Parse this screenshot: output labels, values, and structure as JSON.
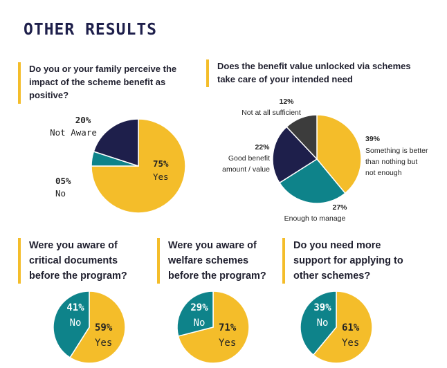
{
  "title": "OTHER RESULTS",
  "colors": {
    "yellow": "#f4bd2a",
    "navy": "#1e1f4b",
    "teal": "#0e838a",
    "dark": "#3c3c3c"
  },
  "chart_data": [
    {
      "type": "pie",
      "question": "Do you or your family perceive the impact of the scheme benefit as positive?",
      "slices": [
        {
          "label": "Yes",
          "value": 75,
          "pct": "75%"
        },
        {
          "label": "No",
          "value": 5,
          "pct": "05%"
        },
        {
          "label": "Not Aware",
          "value": 20,
          "pct": "20%"
        }
      ]
    },
    {
      "type": "pie",
      "question": "Does the benefit value unlocked via schemes take care of your intended need",
      "slices": [
        {
          "label": "Something is better than nothing but not enough",
          "label_lines": [
            "Something is better",
            "than nothing but",
            "not enough"
          ],
          "value": 39,
          "pct": "39%"
        },
        {
          "label": "Enough to manage",
          "label_lines": [
            "Enough to manage"
          ],
          "value": 27,
          "pct": "27%"
        },
        {
          "label": "Good benefit amount / value",
          "label_lines": [
            "Good benefit",
            "amount / value"
          ],
          "value": 22,
          "pct": "22%"
        },
        {
          "label": "Not at all sufficient",
          "label_lines": [
            "Not at all sufficient"
          ],
          "value": 12,
          "pct": "12%"
        }
      ]
    },
    {
      "type": "pie",
      "question": "Were you aware of critical documents before the program?",
      "slices": [
        {
          "label": "Yes",
          "value": 59,
          "pct": "59%"
        },
        {
          "label": "No",
          "value": 41,
          "pct": "41%"
        }
      ]
    },
    {
      "type": "pie",
      "question": "Were you aware of welfare schemes before the program?",
      "slices": [
        {
          "label": "Yes",
          "value": 71,
          "pct": "71%"
        },
        {
          "label": "No",
          "value": 29,
          "pct": "29%"
        }
      ]
    },
    {
      "type": "pie",
      "question": "Do you need more support for applying to other schemes?",
      "slices": [
        {
          "label": "Yes",
          "value": 61,
          "pct": "61%"
        },
        {
          "label": "No",
          "value": 39,
          "pct": "39%"
        }
      ]
    }
  ],
  "questions": {
    "q1": [
      "Do you or your family perceive the",
      "impact of the scheme benefit as",
      "positive?"
    ],
    "q2": [
      "Does the benefit value unlocked via schemes",
      "take care of your intended need"
    ],
    "q3": [
      "Were you aware of",
      "critical documents",
      "before the program?"
    ],
    "q4": [
      "Were you aware of",
      "welfare schemes",
      "before the program?"
    ],
    "q5": [
      "Do you need more",
      "support for applying to",
      "other schemes?"
    ]
  }
}
